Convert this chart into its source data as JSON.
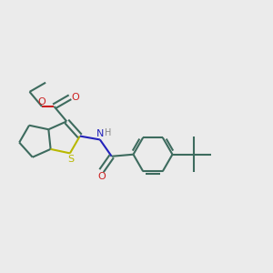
{
  "background_color": "#ebebeb",
  "bond_color": "#3d6b5e",
  "S_color": "#b8b800",
  "N_color": "#2222bb",
  "O_color": "#cc2020",
  "H_color": "#888888",
  "line_width": 1.5,
  "figsize": [
    3.0,
    3.0
  ],
  "dpi": 100,
  "xlim": [
    0,
    10
  ],
  "ylim": [
    0,
    10
  ]
}
